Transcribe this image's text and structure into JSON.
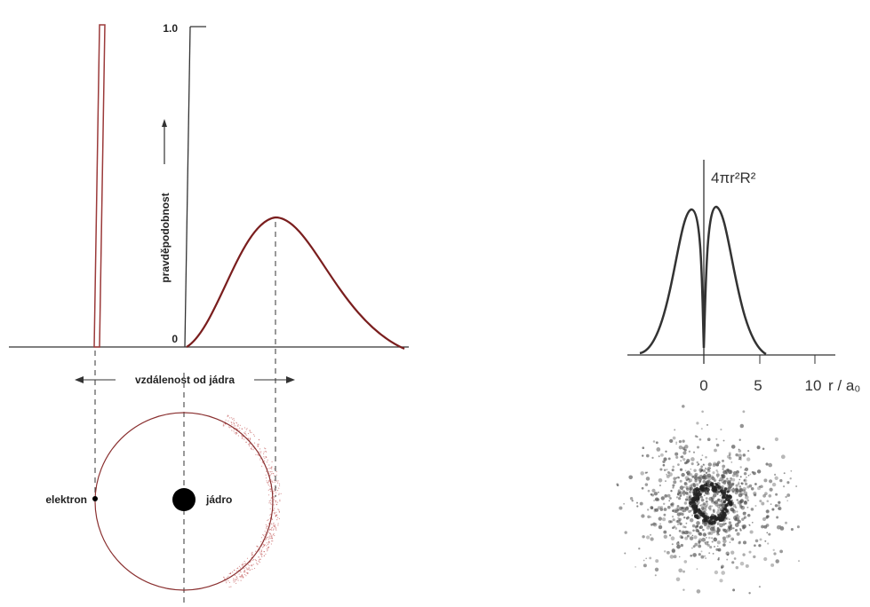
{
  "left_panel": {
    "y_tick_top": "1.0",
    "y_tick_origin": "0",
    "y_axis_label": "pravděpodobnost",
    "x_axis_label": "vzdálenost od jádra",
    "electron_label": "elektron",
    "nucleus_label": "jádro"
  },
  "right_panel": {
    "y_axis_label": "4πr²R²",
    "x_ticks": [
      "0",
      "5",
      "10"
    ],
    "x_axis_label": "r / a₀"
  }
}
